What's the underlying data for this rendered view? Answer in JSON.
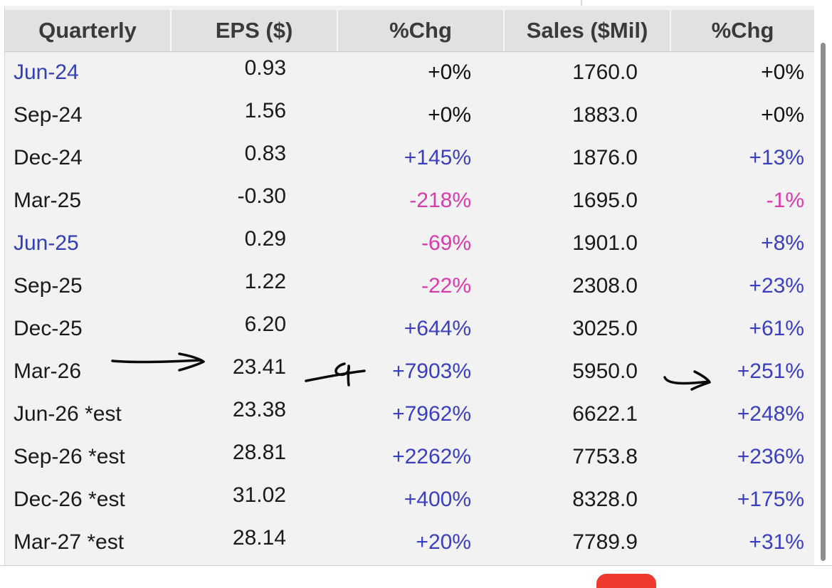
{
  "table": {
    "headers": {
      "quarterly": "Quarterly",
      "eps": "EPS ($)",
      "eps_chg": "%Chg",
      "sales": "Sales ($Mil)",
      "sales_chg": "%Chg"
    },
    "rows": [
      {
        "quarter": "Jun-24",
        "eps": "0.93",
        "eps_chg": "+0%",
        "sales": "1760.0",
        "sales_chg": "+0%"
      },
      {
        "quarter": "Sep-24",
        "eps": "1.56",
        "eps_chg": "+0%",
        "sales": "1883.0",
        "sales_chg": "+0%"
      },
      {
        "quarter": "Dec-24",
        "eps": "0.83",
        "eps_chg": "+145%",
        "sales": "1876.0",
        "sales_chg": "+13%"
      },
      {
        "quarter": "Mar-25",
        "eps": "-0.30",
        "eps_chg": "-218%",
        "sales": "1695.0",
        "sales_chg": "-1%"
      },
      {
        "quarter": "Jun-25",
        "eps": "0.29",
        "eps_chg": "-69%",
        "sales": "1901.0",
        "sales_chg": "+8%"
      },
      {
        "quarter": "Sep-25",
        "eps": "1.22",
        "eps_chg": "-22%",
        "sales": "2308.0",
        "sales_chg": "+23%"
      },
      {
        "quarter": "Dec-25",
        "eps": "6.20",
        "eps_chg": "+644%",
        "sales": "3025.0",
        "sales_chg": "+61%"
      },
      {
        "quarter": "Mar-26",
        "eps": "23.41",
        "eps_chg": "+7903%",
        "sales": "5950.0",
        "sales_chg": "+251%"
      },
      {
        "quarter": "Jun-26 *est",
        "eps": "23.38",
        "eps_chg": "+7962%",
        "sales": "6622.1",
        "sales_chg": "+248%"
      },
      {
        "quarter": "Sep-26 *est",
        "eps": "28.81",
        "eps_chg": "+2262%",
        "sales": "7753.8",
        "sales_chg": "+236%"
      },
      {
        "quarter": "Dec-26 *est",
        "eps": "31.02",
        "eps_chg": "+400%",
        "sales": "8328.0",
        "sales_chg": "+175%"
      },
      {
        "quarter": "Mar-27 *est",
        "eps": "28.14",
        "eps_chg": "+20%",
        "sales": "7789.9",
        "sales_chg": "+31%"
      }
    ]
  },
  "colors": {
    "positive": "#3a3fc2",
    "negative": "#d93aae",
    "neutral": "#111111",
    "highlight_quarter": "#3340b5",
    "header_bg": "#e1e1e1",
    "row_bg": "#f2f2f2"
  },
  "annotations": [
    "hand-drawn-arrow-eps-mar-26",
    "hand-drawn-arrow-eps-chg-mar-26",
    "hand-drawn-arrow-sales-chg-mar-26"
  ]
}
